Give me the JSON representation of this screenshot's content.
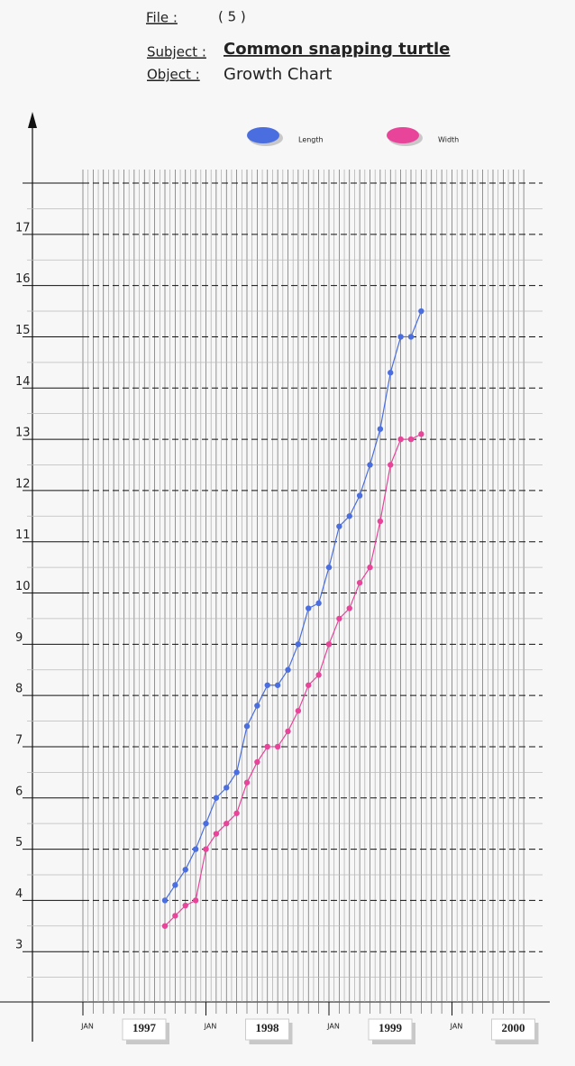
{
  "header": {
    "file_label": "File :",
    "file_value": "( 5 )",
    "subject_label": "Subject :",
    "subject_value": "Common snapping turtle",
    "object_label": "Object :",
    "object_value": "Growth Chart"
  },
  "chart_data": {
    "type": "line",
    "x": [
      "1997-09",
      "1997-10",
      "1997-11",
      "1997-12",
      "1998-01",
      "1998-02",
      "1998-03",
      "1998-04",
      "1998-05",
      "1998-06",
      "1998-07",
      "1998-08",
      "1998-09",
      "1998-10",
      "1998-11",
      "1998-12",
      "1999-01",
      "1999-02",
      "1999-03",
      "1999-04",
      "1999-05",
      "1999-06",
      "1999-07",
      "1999-08",
      "1999-09",
      "1999-10"
    ],
    "series": [
      {
        "name": "Length",
        "color": "#4a6ee0",
        "values": [
          4.0,
          4.3,
          4.6,
          5.0,
          5.5,
          6.0,
          6.2,
          6.5,
          7.4,
          7.8,
          8.2,
          8.2,
          8.5,
          9.0,
          9.7,
          9.8,
          10.5,
          11.3,
          11.5,
          11.9,
          12.5,
          13.2,
          14.3,
          15.0,
          15.0,
          15.5
        ]
      },
      {
        "name": "Width",
        "color": "#e8449a",
        "values": [
          3.5,
          3.7,
          3.9,
          4.0,
          5.0,
          5.3,
          5.5,
          5.7,
          6.3,
          6.7,
          7.0,
          7.0,
          7.3,
          7.7,
          8.2,
          8.4,
          9.0,
          9.5,
          9.7,
          10.2,
          10.5,
          11.4,
          12.5,
          13.0,
          13.0,
          13.1
        ]
      }
    ],
    "xlim": [
      "1997-01",
      "2000-08"
    ],
    "xticks": [
      {
        "value": "1997-01",
        "label": "JAN"
      },
      {
        "value": "1998-01",
        "label": "JAN"
      },
      {
        "value": "1999-01",
        "label": "JAN"
      },
      {
        "value": "2000-01",
        "label": "JAN"
      }
    ],
    "years": [
      "1997",
      "1998",
      "1999",
      "2000"
    ],
    "ylim": [
      2,
      18
    ],
    "yticks": [
      3,
      4,
      5,
      6,
      7,
      8,
      9,
      10,
      11,
      12,
      13,
      14,
      15,
      16,
      17
    ],
    "grid": true
  }
}
